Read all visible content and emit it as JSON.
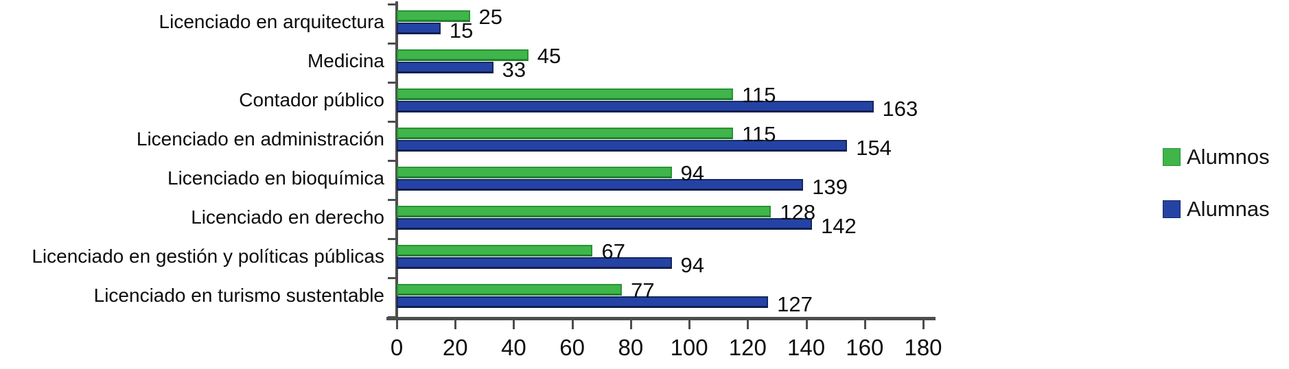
{
  "chart_data": {
    "type": "bar",
    "orientation": "horizontal",
    "title": "",
    "xlabel": "",
    "ylabel": "",
    "categories": [
      "Licenciado en arquitectura",
      "Medicina",
      "Contador público",
      "Licenciado en administración",
      "Licenciado en bioquímica",
      "Licenciado en derecho",
      "Licenciado en gestión y políticas públicas",
      "Licenciado en turismo sustentable"
    ],
    "series": [
      {
        "name": "Alumnos",
        "color": "#3fb54a",
        "border_color": "#2b9237",
        "values": [
          25,
          45,
          115,
          115,
          94,
          128,
          67,
          77
        ]
      },
      {
        "name": "Alumnas",
        "color": "#2443a5",
        "border_color": "#16275f",
        "values": [
          15,
          33,
          163,
          154,
          139,
          142,
          94,
          127
        ]
      }
    ],
    "xlim": [
      0,
      180
    ],
    "xticks": [
      0,
      20,
      40,
      60,
      80,
      100,
      120,
      140,
      160,
      180
    ],
    "grid": false,
    "legend_position": "right",
    "value_labels": "outside-end",
    "axis_color": "#4d4d4d",
    "text_color": "#0d0d0d"
  }
}
